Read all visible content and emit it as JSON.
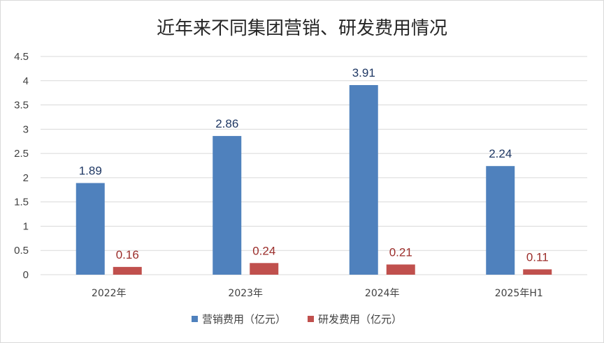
{
  "chart_data": {
    "type": "bar",
    "title": "近年来不同集团营销、研发费用情况",
    "categories": [
      "2022年",
      "2023年",
      "2024年",
      "2025年H1"
    ],
    "series": [
      {
        "name": "营销费用（亿元）",
        "values": [
          1.89,
          2.86,
          3.91,
          2.24
        ],
        "color": "#4f81bd",
        "label_color": "#1f3864"
      },
      {
        "name": "研发费用（亿元）",
        "values": [
          0.16,
          0.24,
          0.21,
          0.11
        ],
        "color": "#c0504d",
        "label_color": "#9b2d2a"
      }
    ],
    "ylim": [
      0,
      4.5
    ],
    "yticks": [
      "0",
      "0.5",
      "1",
      "1.5",
      "2",
      "2.5",
      "3",
      "3.5",
      "4",
      "4.5"
    ],
    "grid": true,
    "legend_position": "bottom"
  }
}
